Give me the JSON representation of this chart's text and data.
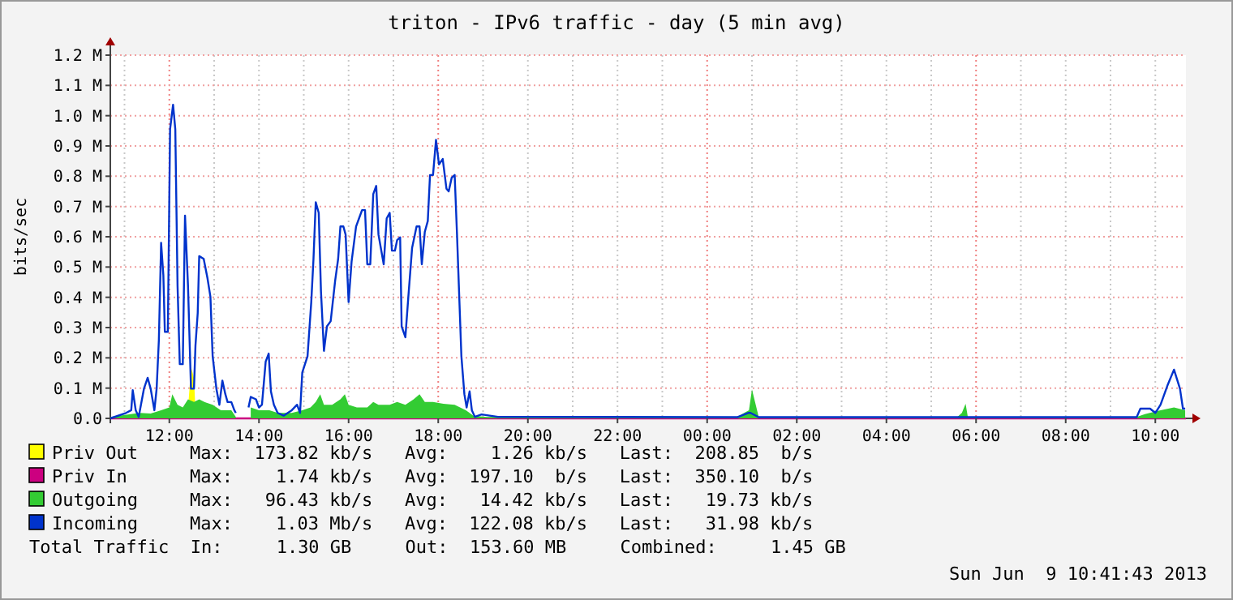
{
  "chart_data": {
    "type": "line",
    "title": "triton - IPv6 traffic - day (5 min avg)",
    "ylabel": "bits/sec",
    "xlim": [
      "2013-06-08T10:41",
      "2013-06-09T10:41"
    ],
    "xticks": [
      {
        "value": "2013-06-08T12:00",
        "label": "12:00"
      },
      {
        "value": "2013-06-08T14:00",
        "label": "14:00"
      },
      {
        "value": "2013-06-08T16:00",
        "label": "16:00"
      },
      {
        "value": "2013-06-08T18:00",
        "label": "18:00"
      },
      {
        "value": "2013-06-08T20:00",
        "label": "20:00"
      },
      {
        "value": "2013-06-08T22:00",
        "label": "22:00"
      },
      {
        "value": "2013-06-09T00:00",
        "label": "00:00"
      },
      {
        "value": "2013-06-09T02:00",
        "label": "02:00"
      },
      {
        "value": "2013-06-09T04:00",
        "label": "04:00"
      },
      {
        "value": "2013-06-09T06:00",
        "label": "06:00"
      },
      {
        "value": "2013-06-09T08:00",
        "label": "08:00"
      },
      {
        "value": "2013-06-09T10:00",
        "label": "10:00"
      }
    ],
    "ylim": [
      0,
      1200000
    ],
    "yticks": [
      {
        "value": 0,
        "label": "0.0"
      },
      {
        "value": 100000,
        "label": "0.1 M"
      },
      {
        "value": 200000,
        "label": "0.2 M"
      },
      {
        "value": 300000,
        "label": "0.3 M"
      },
      {
        "value": 400000,
        "label": "0.4 M"
      },
      {
        "value": 500000,
        "label": "0.5 M"
      },
      {
        "value": 600000,
        "label": "0.6 M"
      },
      {
        "value": 700000,
        "label": "0.7 M"
      },
      {
        "value": 800000,
        "label": "0.8 M"
      },
      {
        "value": 900000,
        "label": "0.9 M"
      },
      {
        "value": 1000000,
        "label": "1.0 M"
      },
      {
        "value": 1100000,
        "label": "1.1 M"
      },
      {
        "value": 1200000,
        "label": "1.2 M"
      }
    ],
    "grid": true,
    "legend": "bottom",
    "series": [
      {
        "name": "Priv Out",
        "type": "area",
        "color": "#ffff00",
        "x": [
          "2013-06-08T10:41",
          "2013-06-08T12:24",
          "2013-06-08T12:27",
          "2013-06-08T12:29",
          "2013-06-08T12:33",
          "2013-06-08T12:35",
          "2013-06-08T12:37",
          "2013-06-09T10:41"
        ],
        "values": [
          0,
          0,
          98000,
          170000,
          134000,
          27000,
          0,
          0
        ]
      },
      {
        "name": "Priv In",
        "color": "#cc0080",
        "x": [
          "2013-06-08T10:41",
          "2013-06-09T10:41"
        ],
        "values": [
          0,
          0
        ]
      },
      {
        "name": "Outgoing",
        "type": "area",
        "color": "#33cc33",
        "x": [
          "2013-06-08T10:41",
          "2013-06-08T11:20",
          "2013-06-08T11:35",
          "2013-06-08T11:49",
          "2013-06-08T12:00",
          "2013-06-08T12:04",
          "2013-06-08T12:11",
          "2013-06-08T12:18",
          "2013-06-08T12:25",
          "2013-06-08T12:33",
          "2013-06-08T12:40",
          "2013-06-08T12:47",
          "2013-06-08T12:58",
          "2013-06-08T13:09",
          "2013-06-08T13:23",
          "2013-06-08T13:29",
          "2013-06-08T13:36",
          "2013-06-08T13:49",
          "2013-06-08T14:00",
          "2013-06-08T14:14",
          "2013-06-08T14:25",
          "2013-06-08T14:44",
          "2013-06-08T14:58",
          "2013-06-08T15:09",
          "2013-06-08T15:16",
          "2013-06-08T15:22",
          "2013-06-08T15:27",
          "2013-06-08T15:38",
          "2013-06-08T15:49",
          "2013-06-08T15:55",
          "2013-06-08T16:00",
          "2013-06-08T16:11",
          "2013-06-08T16:25",
          "2013-06-08T16:33",
          "2013-06-08T16:40",
          "2013-06-08T16:55",
          "2013-06-08T17:05",
          "2013-06-08T17:16",
          "2013-06-08T17:27",
          "2013-06-08T17:35",
          "2013-06-08T17:42",
          "2013-06-08T17:53",
          "2013-06-08T18:07",
          "2013-06-08T18:22",
          "2013-06-08T18:37",
          "2013-06-08T18:47",
          "2013-06-08T19:05",
          "2013-06-09T00:40",
          "2013-06-09T00:56",
          "2013-06-09T01:00",
          "2013-06-09T01:09",
          "2013-06-09T05:35",
          "2013-06-09T05:41",
          "2013-06-09T05:46",
          "2013-06-09T05:49",
          "2013-06-09T09:35",
          "2013-06-09T09:46",
          "2013-06-09T10:07",
          "2013-06-09T10:25",
          "2013-06-09T10:40"
        ],
        "values": [
          5000,
          18000,
          16000,
          27000,
          36000,
          80000,
          45000,
          36000,
          63000,
          54000,
          63000,
          54000,
          45000,
          27000,
          27000,
          5000,
          null,
          36000,
          27000,
          27000,
          18000,
          18000,
          27000,
          36000,
          54000,
          80000,
          45000,
          45000,
          63000,
          80000,
          45000,
          36000,
          36000,
          54000,
          45000,
          45000,
          54000,
          45000,
          63000,
          80000,
          54000,
          54000,
          48000,
          45000,
          27000,
          9000,
          5000,
          5000,
          27000,
          96000,
          5000,
          5000,
          18000,
          48000,
          5000,
          5000,
          14000,
          27000,
          36000,
          27000
        ]
      },
      {
        "name": "Incoming",
        "color": "#0033cc",
        "x": [
          "2013-06-08T10:41",
          "2013-06-08T11:02",
          "2013-06-08T11:09",
          "2013-06-08T11:11",
          "2013-06-08T11:15",
          "2013-06-08T11:19",
          "2013-06-08T11:22",
          "2013-06-08T11:26",
          "2013-06-08T11:31",
          "2013-06-08T11:35",
          "2013-06-08T11:40",
          "2013-06-08T11:43",
          "2013-06-08T11:46",
          "2013-06-08T11:49",
          "2013-06-08T11:52",
          "2013-06-08T11:54",
          "2013-06-08T11:58",
          "2013-06-08T12:01",
          "2013-06-08T12:05",
          "2013-06-08T12:08",
          "2013-06-08T12:11",
          "2013-06-08T12:14",
          "2013-06-08T12:18",
          "2013-06-08T12:21",
          "2013-06-08T12:25",
          "2013-06-08T12:29",
          "2013-06-08T12:33",
          "2013-06-08T12:35",
          "2013-06-08T12:38",
          "2013-06-08T12:40",
          "2013-06-08T12:46",
          "2013-06-08T12:51",
          "2013-06-08T12:55",
          "2013-06-08T12:58",
          "2013-06-08T13:03",
          "2013-06-08T13:07",
          "2013-06-08T13:11",
          "2013-06-08T13:15",
          "2013-06-08T13:18",
          "2013-06-08T13:23",
          "2013-06-08T13:27",
          "2013-06-08T13:29",
          "2013-06-08T13:36",
          "2013-06-08T13:46",
          "2013-06-08T13:49",
          "2013-06-08T13:56",
          "2013-06-08T14:00",
          "2013-06-08T14:04",
          "2013-06-08T14:09",
          "2013-06-08T14:13",
          "2013-06-08T14:16",
          "2013-06-08T14:20",
          "2013-06-08T14:25",
          "2013-06-08T14:33",
          "2013-06-08T14:44",
          "2013-06-08T14:51",
          "2013-06-08T14:55",
          "2013-06-08T14:58",
          "2013-06-08T15:05",
          "2013-06-08T15:10",
          "2013-06-08T15:13",
          "2013-06-08T15:16",
          "2013-06-08T15:20",
          "2013-06-08T15:23",
          "2013-06-08T15:27",
          "2013-06-08T15:31",
          "2013-06-08T15:36",
          "2013-06-08T15:42",
          "2013-06-08T15:46",
          "2013-06-08T15:49",
          "2013-06-08T15:53",
          "2013-06-08T15:56",
          "2013-06-08T16:00",
          "2013-06-08T16:04",
          "2013-06-08T16:10",
          "2013-06-08T16:14",
          "2013-06-08T16:18",
          "2013-06-08T16:22",
          "2013-06-08T16:25",
          "2013-06-08T16:29",
          "2013-06-08T16:33",
          "2013-06-08T16:37",
          "2013-06-08T16:40",
          "2013-06-08T16:47",
          "2013-06-08T16:51",
          "2013-06-08T16:55",
          "2013-06-08T16:58",
          "2013-06-08T17:02",
          "2013-06-08T17:05",
          "2013-06-08T17:09",
          "2013-06-08T17:11",
          "2013-06-08T17:16",
          "2013-06-08T17:20",
          "2013-06-08T17:25",
          "2013-06-08T17:31",
          "2013-06-08T17:35",
          "2013-06-08T17:38",
          "2013-06-08T17:42",
          "2013-06-08T17:46",
          "2013-06-08T17:49",
          "2013-06-08T17:53",
          "2013-06-08T17:57",
          "2013-06-08T18:01",
          "2013-06-08T18:06",
          "2013-06-08T18:11",
          "2013-06-08T18:14",
          "2013-06-08T18:18",
          "2013-06-08T18:22",
          "2013-06-08T18:25",
          "2013-06-08T18:31",
          "2013-06-08T18:35",
          "2013-06-08T18:38",
          "2013-06-08T18:42",
          "2013-06-08T18:45",
          "2013-06-08T18:49",
          "2013-06-08T18:58",
          "2013-06-08T19:20",
          "2013-06-09T00:40",
          "2013-06-09T00:55",
          "2013-06-09T00:58",
          "2013-06-09T01:09",
          "2013-06-09T09:35",
          "2013-06-09T09:40",
          "2013-06-09T09:53",
          "2013-06-09T10:00",
          "2013-06-09T10:07",
          "2013-06-09T10:16",
          "2013-06-09T10:25",
          "2013-06-09T10:33",
          "2013-06-09T10:37",
          "2013-06-09T10:40"
        ],
        "values": [
          0,
          18000,
          27000,
          93000,
          27000,
          5000,
          45000,
          98000,
          134000,
          98000,
          27000,
          98000,
          259000,
          580000,
          473000,
          286000,
          286000,
          955000,
          1036000,
          955000,
          438000,
          179000,
          179000,
          670000,
          438000,
          98000,
          98000,
          241000,
          348000,
          536000,
          527000,
          464000,
          402000,
          205000,
          98000,
          45000,
          125000,
          80000,
          54000,
          54000,
          27000,
          18000,
          null,
          36000,
          71000,
          63000,
          36000,
          45000,
          188000,
          214000,
          89000,
          45000,
          18000,
          9000,
          27000,
          45000,
          18000,
          152000,
          205000,
          384000,
          527000,
          714000,
          679000,
          420000,
          223000,
          304000,
          321000,
          455000,
          527000,
          634000,
          634000,
          607000,
          384000,
          518000,
          634000,
          661000,
          688000,
          688000,
          509000,
          509000,
          741000,
          768000,
          607000,
          509000,
          661000,
          679000,
          554000,
          554000,
          589000,
          598000,
          304000,
          268000,
          402000,
          563000,
          634000,
          634000,
          509000,
          616000,
          652000,
          804000,
          804000,
          920000,
          839000,
          857000,
          759000,
          750000,
          795000,
          804000,
          616000,
          205000,
          80000,
          36000,
          89000,
          27000,
          5000,
          13000,
          5000,
          4000,
          18000,
          18000,
          4000,
          4000,
          32000,
          32000,
          18000,
          45000,
          107000,
          161000,
          98000,
          32000,
          32000
        ]
      }
    ],
    "annotations": [
      "Max:  173.82 kb/s   Avg:    1.26 kb/s   Last:  208.85  b/s",
      "Max:    1.74 kb/s   Avg:  197.10  b/s   Last:  350.10  b/s",
      "Max:   96.43 kb/s   Avg:   14.42 kb/s   Last:   19.73 kb/s",
      "Max:    1.03 Mb/s   Avg:  122.08 kb/s   Last:   31.98 kb/s",
      "Total Traffic  In:     1.30 GB     Out:  153.60 MB     Combined:     1.45 GB",
      "Sun Jun  9 10:41:43 2013"
    ]
  }
}
